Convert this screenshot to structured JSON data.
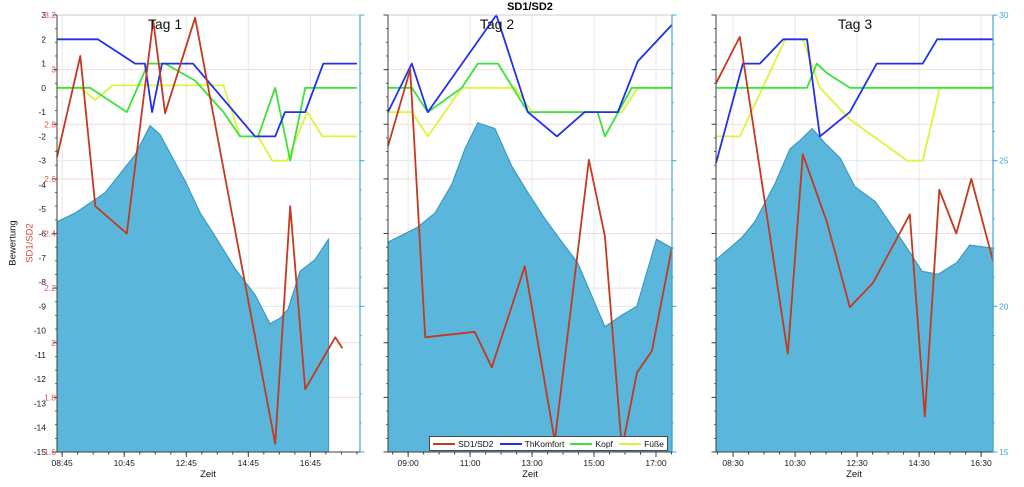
{
  "title": "SD1/SD2",
  "axes": {
    "xlabel": "Zeit",
    "left_black": {
      "label": "Bewertung",
      "min": -15,
      "max": 3,
      "ticks": [
        3,
        2,
        1,
        0,
        -1,
        -2,
        -3,
        -4,
        -5,
        -6,
        -7,
        -8,
        -9,
        -10,
        -11,
        -12,
        -13,
        -14,
        -15
      ],
      "text_color": "#1a1a1a"
    },
    "left_red": {
      "label": "SD1/SD2",
      "min": 1.6,
      "max": 3.2,
      "ticks": [
        "3.2",
        "3",
        "2.8",
        "2.6",
        "2.4",
        "2.2",
        "2",
        "1.8",
        "1.6"
      ],
      "text_color": "#e05a4e",
      "grid_color": "#f5d9d5"
    },
    "right_cyan": {
      "min": 15,
      "max": 30,
      "ticks": [
        "30",
        "25",
        "20",
        "15"
      ],
      "text_color": "#41a8d5",
      "grid_color": "#d9ecf5"
    }
  },
  "legend": {
    "items": [
      {
        "label": "SD1/SD2",
        "color": "#c4391f"
      },
      {
        "label": "ThKomfort",
        "color": "#2030ee"
      },
      {
        "label": "Kopf",
        "color": "#3ce23a"
      },
      {
        "label": "Füße",
        "color": "#dff23c"
      }
    ]
  },
  "colors": {
    "area_fill": "#5ab7db",
    "area_edge": "#3c9ac2",
    "x_grid": "#e7e7e7",
    "spine": "#3f3f3f",
    "frame": "#cccccc"
  },
  "chart_data": [
    {
      "type": "line+area",
      "label": "Tag 1",
      "duration_min": 586,
      "x_ticks": [
        {
          "t": 10,
          "label": "08:45"
        },
        {
          "t": 130,
          "label": "10:45"
        },
        {
          "t": 250,
          "label": "12:45"
        },
        {
          "t": 370,
          "label": "14:45"
        },
        {
          "t": 490,
          "label": "16:45"
        }
      ],
      "series": {
        "sd1sd2": {
          "axis": "red",
          "points": [
            [
              0,
              2.68
            ],
            [
              45,
              3.05
            ],
            [
              74,
              2.5
            ],
            [
              135,
              2.4
            ],
            [
              186,
              3.18
            ],
            [
              209,
              2.84
            ],
            [
              267,
              3.19
            ],
            [
              422,
              1.63
            ],
            [
              451,
              2.5
            ],
            [
              480,
              1.83
            ],
            [
              538,
              2.02
            ],
            [
              552,
              1.98
            ]
          ]
        },
        "thkomfort": {
          "axis": "black",
          "points": [
            [
              0,
              2
            ],
            [
              79,
              2
            ],
            [
              151,
              1
            ],
            [
              170,
              1
            ],
            [
              184,
              -1
            ],
            [
              203,
              1
            ],
            [
              263,
              1
            ],
            [
              383,
              -2
            ],
            [
              422,
              -2
            ],
            [
              441,
              -1
            ],
            [
              480,
              -1
            ],
            [
              515,
              1
            ],
            [
              580,
              1
            ]
          ]
        },
        "kopf": {
          "axis": "black",
          "points": [
            [
              0,
              0
            ],
            [
              64,
              0
            ],
            [
              135,
              -1
            ],
            [
              176,
              1
            ],
            [
              209,
              1
            ],
            [
              267,
              0.3
            ],
            [
              322,
              -1
            ],
            [
              354,
              -2
            ],
            [
              389,
              -2
            ],
            [
              422,
              0
            ],
            [
              451,
              -3
            ],
            [
              480,
              0
            ],
            [
              580,
              0
            ]
          ]
        },
        "fuesse": {
          "axis": "black",
          "points": [
            [
              0,
              0
            ],
            [
              45,
              0
            ],
            [
              74,
              -0.5
            ],
            [
              107,
              0.1
            ],
            [
              322,
              0.1
            ],
            [
              354,
              -2
            ],
            [
              389,
              -2
            ],
            [
              416,
              -3
            ],
            [
              445,
              -3
            ],
            [
              484,
              -1
            ],
            [
              513,
              -2
            ],
            [
              580,
              -2
            ]
          ]
        },
        "temperatur_area": {
          "axis": "cyan",
          "points": [
            [
              0,
              22.9
            ],
            [
              35,
              23.2
            ],
            [
              93,
              23.9
            ],
            [
              151,
              25.2
            ],
            [
              180,
              26.2
            ],
            [
              199,
              25.9
            ],
            [
              248,
              24.3
            ],
            [
              277,
              23.2
            ],
            [
              306,
              22.4
            ],
            [
              344,
              21.3
            ],
            [
              383,
              20.4
            ],
            [
              412,
              19.4
            ],
            [
              432,
              19.6
            ],
            [
              447,
              19.9
            ],
            [
              470,
              21.2
            ],
            [
              499,
              21.6
            ],
            [
              525,
              22.3
            ]
          ]
        }
      }
    },
    {
      "type": "line+area",
      "label": "Tag 2",
      "duration_min": 550,
      "x_ticks": [
        {
          "t": 39,
          "label": "09:00"
        },
        {
          "t": 159,
          "label": "11:00"
        },
        {
          "t": 279,
          "label": "13:00"
        },
        {
          "t": 399,
          "label": "15:00"
        },
        {
          "t": 519,
          "label": "17:00"
        }
      ],
      "series": {
        "sd1sd2": {
          "axis": "red",
          "points": [
            [
              0,
              2.72
            ],
            [
              43,
              3.0
            ],
            [
              72,
              2.02
            ],
            [
              168,
              2.04
            ],
            [
              201,
              1.91
            ],
            [
              265,
              2.28
            ],
            [
              323,
              1.64
            ],
            [
              389,
              2.67
            ],
            [
              420,
              2.39
            ],
            [
              453,
              1.61
            ],
            [
              482,
              1.89
            ],
            [
              511,
              1.97
            ],
            [
              550,
              2.35
            ]
          ]
        },
        "thkomfort": {
          "axis": "black",
          "points": [
            [
              0,
              -1
            ],
            [
              46,
              1
            ],
            [
              77,
              -1
            ],
            [
              210,
              3
            ],
            [
              271,
              -1
            ],
            [
              327,
              -2
            ],
            [
              381,
              -1
            ],
            [
              445,
              -1
            ],
            [
              484,
              1.1
            ],
            [
              550,
              2.6
            ]
          ]
        },
        "kopf": {
          "axis": "black",
          "points": [
            [
              0,
              0
            ],
            [
              46,
              0
            ],
            [
              77,
              -1
            ],
            [
              143,
              0
            ],
            [
              174,
              1
            ],
            [
              213,
              1
            ],
            [
              271,
              -1
            ],
            [
              406,
              -1
            ],
            [
              420,
              -2
            ],
            [
              472,
              0
            ],
            [
              550,
              0
            ]
          ]
        },
        "fuesse": {
          "axis": "black",
          "points": [
            [
              0,
              -1
            ],
            [
              46,
              -1
            ],
            [
              77,
              -2
            ],
            [
              143,
              0
            ],
            [
              246,
              0
            ],
            [
              279,
              -1
            ],
            [
              453,
              -1
            ],
            [
              484,
              0
            ],
            [
              550,
              0
            ]
          ]
        },
        "temperatur_area": {
          "axis": "cyan",
          "points": [
            [
              0,
              22.2
            ],
            [
              56,
              22.7
            ],
            [
              91,
              23.2
            ],
            [
              124,
              24.2
            ],
            [
              149,
              25.4
            ],
            [
              174,
              26.3
            ],
            [
              207,
              26.1
            ],
            [
              240,
              24.8
            ],
            [
              271,
              23.9
            ],
            [
              304,
              23.0
            ],
            [
              337,
              22.2
            ],
            [
              367,
              21.5
            ],
            [
              420,
              19.3
            ],
            [
              453,
              19.7
            ],
            [
              482,
              20.0
            ],
            [
              520,
              22.3
            ],
            [
              550,
              22.0
            ]
          ]
        }
      }
    },
    {
      "type": "line+area",
      "label": "Tag 3",
      "duration_min": 536,
      "x_ticks": [
        {
          "t": 33,
          "label": "08:30"
        },
        {
          "t": 153,
          "label": "10:30"
        },
        {
          "t": 273,
          "label": "12:30"
        },
        {
          "t": 393,
          "label": "14:30"
        },
        {
          "t": 513,
          "label": "16:30"
        }
      ],
      "series": {
        "sd1sd2": {
          "axis": "red",
          "points": [
            [
              0,
              2.95
            ],
            [
              46,
              3.12
            ],
            [
              139,
              1.96
            ],
            [
              168,
              2.69
            ],
            [
              215,
              2.44
            ],
            [
              259,
              2.13
            ],
            [
              304,
              2.22
            ],
            [
              375,
              2.47
            ],
            [
              404,
              1.73
            ],
            [
              432,
              2.56
            ],
            [
              465,
              2.4
            ],
            [
              494,
              2.6
            ],
            [
              536,
              2.3
            ]
          ]
        },
        "thkomfort": {
          "axis": "black",
          "points": [
            [
              0,
              -3.1
            ],
            [
              52,
              1
            ],
            [
              85,
              1
            ],
            [
              130,
              2
            ],
            [
              176,
              2
            ],
            [
              201,
              -2
            ],
            [
              259,
              -1
            ],
            [
              311,
              1
            ],
            [
              400,
              1
            ],
            [
              428,
              2
            ],
            [
              536,
              2
            ]
          ]
        },
        "kopf": {
          "axis": "black",
          "points": [
            [
              0,
              0
            ],
            [
              176,
              0
            ],
            [
              195,
              1
            ],
            [
              215,
              0.6
            ],
            [
              259,
              0
            ],
            [
              536,
              0
            ]
          ]
        },
        "fuesse": {
          "axis": "black",
          "points": [
            [
              0,
              -2
            ],
            [
              46,
              -2
            ],
            [
              134,
              2
            ],
            [
              168,
              2
            ],
            [
              201,
              0
            ],
            [
              259,
              -1.3
            ],
            [
              370,
              -3
            ],
            [
              400,
              -3
            ],
            [
              433,
              0
            ],
            [
              536,
              0
            ]
          ]
        },
        "temperatur_area": {
          "axis": "cyan",
          "points": [
            [
              0,
              21.6
            ],
            [
              33,
              22.1
            ],
            [
              52,
              22.4
            ],
            [
              75,
              22.9
            ],
            [
              114,
              24.2
            ],
            [
              143,
              25.4
            ],
            [
              163,
              25.7
            ],
            [
              186,
              26.1
            ],
            [
              211,
              25.6
            ],
            [
              240,
              25.1
            ],
            [
              269,
              24.1
            ],
            [
              308,
              23.6
            ],
            [
              362,
              22.2
            ],
            [
              399,
              21.2
            ],
            [
              430,
              21.1
            ],
            [
              466,
              21.5
            ],
            [
              491,
              22.1
            ],
            [
              536,
              22.0
            ]
          ]
        }
      }
    }
  ]
}
